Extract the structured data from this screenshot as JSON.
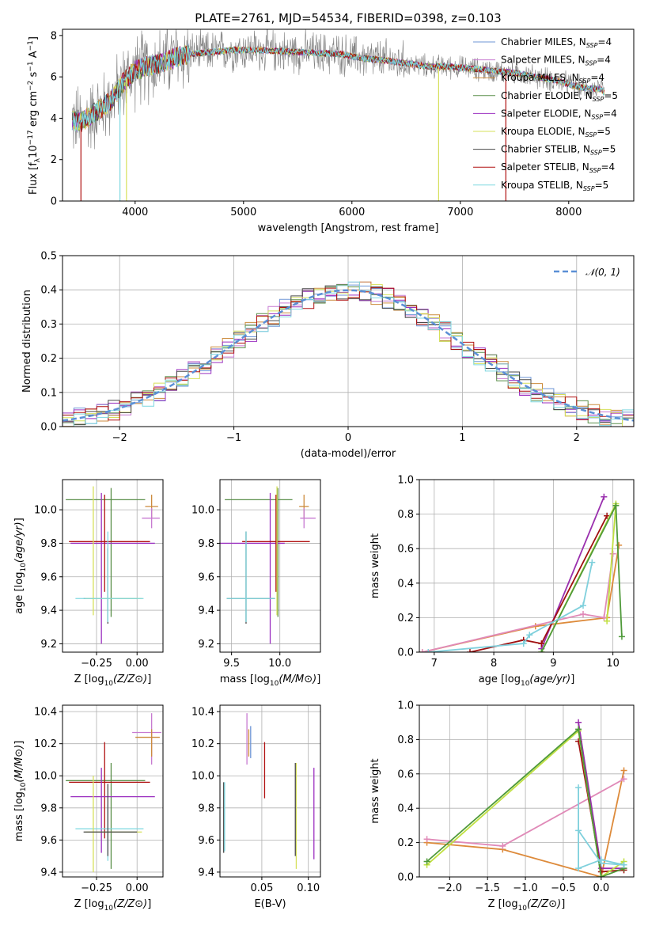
{
  "figure_title": "PLATE=2761, MJD=54534, FIBERID=0398, z=0.103",
  "colors": {
    "chabrier_miles": "#6e96d6",
    "salpeter_miles": "#c77ad1",
    "kroupa_miles": "#cc8b3d",
    "chabrier_elodie": "#5a8f4a",
    "salpeter_elodie": "#9b30c0",
    "kroupa_elodie": "#d6e05a",
    "chabrier_stelib": "#4a4a4a",
    "salpeter_stelib": "#b01010",
    "kroupa_stelib": "#7fd8e0",
    "data_gray": "#808080",
    "normal_curve": "#5b8fd6",
    "grid": "#b0b0b0",
    "mw_pink": "#e08ab8",
    "mw_orange": "#dd8a3a",
    "mw_purple": "#9a2fae",
    "mw_red": "#a01010",
    "mw_lime": "#c0e040",
    "mw_green": "#4f9a3a",
    "mw_cyan": "#7fd0dc"
  },
  "chart_data": [
    {
      "id": "spectrum",
      "type": "line",
      "title": "PLATE=2761, MJD=54534, FIBERID=0398, z=0.103",
      "xlabel": "wavelength [Angstrom, rest frame]",
      "ylabel_parts": [
        "Flux [f",
        "λ",
        "10",
        "−17",
        " erg cm",
        "−2",
        " s",
        "−1",
        " A",
        "−1",
        "]"
      ],
      "xlim": [
        3330,
        8600
      ],
      "ylim": [
        0,
        8.3
      ],
      "xticks": [
        "4000",
        "5000",
        "6000",
        "7000",
        "8000"
      ],
      "xtick_values": [
        4000,
        5000,
        6000,
        7000,
        8000
      ],
      "yticks": [
        "0",
        "2",
        "4",
        "6",
        "8"
      ],
      "ytick_values": [
        0,
        2,
        4,
        6,
        8
      ],
      "continuum": {
        "x": [
          3420,
          3500,
          3600,
          3700,
          3800,
          3900,
          4000,
          4100,
          4200,
          4300,
          4400,
          4500,
          4700,
          4900,
          5100,
          5300,
          5500,
          5700,
          5900,
          6100,
          6300,
          6500,
          6700,
          6900,
          7100,
          7300,
          7500,
          7700,
          7900,
          8100,
          8300,
          8330
        ],
        "y": [
          3.9,
          3.8,
          4.2,
          4.5,
          5.0,
          5.8,
          6.3,
          6.5,
          6.6,
          6.8,
          7.0,
          7.1,
          7.2,
          7.3,
          7.3,
          7.25,
          7.2,
          7.15,
          7.1,
          6.9,
          6.8,
          6.65,
          6.5,
          6.5,
          6.4,
          6.3,
          6.2,
          6.0,
          5.8,
          5.5,
          5.4,
          5.2
        ]
      },
      "legend": [
        {
          "name": "Chabrier MILES, N",
          "sub": "SSP",
          "tail": "=4",
          "color": "chabrier_miles"
        },
        {
          "name": "Salpeter MILES, N",
          "sub": "SSP",
          "tail": "=4",
          "color": "salpeter_miles"
        },
        {
          "name": "Kroupa MILES, N",
          "sub": "SSP",
          "tail": "=4",
          "color": "kroupa_miles"
        },
        {
          "name": "Chabrier ELODIE, N",
          "sub": "SSP",
          "tail": "=5",
          "color": "chabrier_elodie"
        },
        {
          "name": "Salpeter ELODIE, N",
          "sub": "SSP",
          "tail": "=4",
          "color": "salpeter_elodie"
        },
        {
          "name": "Kroupa ELODIE, N",
          "sub": "SSP",
          "tail": "=5",
          "color": "kroupa_elodie"
        },
        {
          "name": "Chabrier STELIB, N",
          "sub": "SSP",
          "tail": "=5",
          "color": "chabrier_stelib"
        },
        {
          "name": "Salpeter STELIB, N",
          "sub": "SSP",
          "tail": "=4",
          "color": "salpeter_stelib"
        },
        {
          "name": "Kroupa STELIB, N",
          "sub": "SSP",
          "tail": "=5",
          "color": "kroupa_stelib"
        }
      ]
    },
    {
      "id": "residuals",
      "type": "histogram",
      "xlabel": "(data-model)/error",
      "ylabel": "Normed distribution",
      "xlim": [
        -2.5,
        2.5
      ],
      "ylim": [
        0,
        0.5
      ],
      "xticks": [
        "−2",
        "−1",
        "0",
        "1",
        "2"
      ],
      "xtick_values": [
        -2,
        -1,
        0,
        1,
        2
      ],
      "yticks": [
        "0.0",
        "0.1",
        "0.2",
        "0.3",
        "0.4",
        "0.5"
      ],
      "ytick_values": [
        0,
        0.1,
        0.2,
        0.3,
        0.4,
        0.5
      ],
      "bin_width": 0.1,
      "legend": [
        {
          "name": "𝒩(0, 1)",
          "color": "normal_curve",
          "style": "dashed"
        }
      ]
    },
    {
      "id": "z_age",
      "type": "errorbar",
      "xlabel": "Z [log10(Z/Z⊙)]",
      "ylabel": "age [log10(age/yr)]",
      "xlim": [
        -0.46,
        0.16
      ],
      "ylim": [
        9.15,
        10.18
      ],
      "xticks": [
        "−0.25",
        "0.00"
      ],
      "xtick_values": [
        -0.25,
        0.0
      ],
      "yticks": [
        "9.2",
        "9.4",
        "9.6",
        "9.8",
        "10.0"
      ],
      "ytick_values": [
        9.2,
        9.4,
        9.6,
        9.8,
        10.0
      ],
      "points": [
        {
          "x": -0.16,
          "y": 10.06,
          "xerr": [
            0.28,
            0.21
          ],
          "yerr": [
            0.7,
            0.07
          ],
          "color": "chabrier_elodie"
        },
        {
          "x": 0.09,
          "y": 10.02,
          "xerr": [
            0.04,
            0.04
          ],
          "yerr": [
            0.07,
            0.07
          ],
          "color": "kroupa_miles"
        },
        {
          "x": 0.09,
          "y": 9.95,
          "xerr": [
            0.06,
            0.05
          ],
          "yerr": [
            0.06,
            0.06
          ],
          "color": "salpeter_miles"
        },
        {
          "x": -0.22,
          "y": 9.8,
          "xerr": [
            0.19,
            0.33
          ],
          "yerr": [
            0.6,
            0.3
          ],
          "color": "salpeter_elodie"
        },
        {
          "x": -0.2,
          "y": 9.81,
          "xerr": [
            0.22,
            0.28
          ],
          "yerr": [
            0.3,
            0.28
          ],
          "color": "salpeter_stelib"
        },
        {
          "x": -0.18,
          "y": 9.47,
          "xerr": [
            0.15,
            0.18
          ],
          "yerr": [
            0.15,
            0.3
          ],
          "color": "chabrier_stelib"
        },
        {
          "x": -0.27,
          "y": 9.47,
          "xerr": [
            0.05,
            0.3
          ],
          "yerr": [
            0.1,
            0.67
          ],
          "color": "kroupa_elodie"
        },
        {
          "x": -0.18,
          "y": 9.47,
          "xerr": [
            0.2,
            0.22
          ],
          "yerr": [
            0.14,
            0.4
          ],
          "color": "kroupa_stelib"
        }
      ]
    },
    {
      "id": "mass_age",
      "type": "errorbar",
      "xlabel": "mass [log10(M/M⊙)]",
      "ylabel": "",
      "xlim": [
        9.38,
        10.42
      ],
      "ylim": [
        9.15,
        10.18
      ],
      "xticks": [
        "9.5",
        "10.0"
      ],
      "xtick_values": [
        9.5,
        10.0
      ],
      "yticks": [
        "9.2",
        "9.4",
        "9.6",
        "9.8",
        "10.0"
      ],
      "ytick_values": [
        9.2,
        9.4,
        9.6,
        9.8,
        10.0
      ],
      "points": [
        {
          "x": 9.98,
          "y": 10.06,
          "xerr": [
            0.55,
            0.15
          ],
          "yerr": [
            0.7,
            0.07
          ],
          "color": "chabrier_elodie"
        },
        {
          "x": 10.25,
          "y": 10.02,
          "xerr": [
            0.05,
            0.05
          ],
          "yerr": [
            0.07,
            0.07
          ],
          "color": "kroupa_miles"
        },
        {
          "x": 10.25,
          "y": 9.95,
          "xerr": [
            0.04,
            0.12
          ],
          "yerr": [
            0.06,
            0.06
          ],
          "color": "salpeter_miles"
        },
        {
          "x": 9.9,
          "y": 9.8,
          "xerr": [
            0.55,
            0.15
          ],
          "yerr": [
            0.6,
            0.3
          ],
          "color": "salpeter_elodie"
        },
        {
          "x": 9.96,
          "y": 9.81,
          "xerr": [
            0.35,
            0.35
          ],
          "yerr": [
            0.3,
            0.28
          ],
          "color": "salpeter_stelib"
        },
        {
          "x": 9.65,
          "y": 9.47,
          "xerr": [
            0.2,
            0.3
          ],
          "yerr": [
            0.15,
            0.4
          ],
          "color": "chabrier_stelib"
        },
        {
          "x": 9.97,
          "y": 9.47,
          "xerr": [
            0.0,
            0.0
          ],
          "yerr": [
            0.1,
            0.67
          ],
          "color": "kroupa_elodie"
        },
        {
          "x": 9.65,
          "y": 9.47,
          "xerr": [
            0.2,
            0.3
          ],
          "yerr": [
            0.14,
            0.4
          ],
          "color": "kroupa_stelib"
        }
      ]
    },
    {
      "id": "age_weight",
      "type": "line",
      "xlabel": "age [log10(age/yr)]",
      "ylabel": "mass weight",
      "xlim": [
        6.75,
        10.35
      ],
      "ylim": [
        0,
        1.0
      ],
      "xticks": [
        "7",
        "8",
        "9",
        "10"
      ],
      "xtick_values": [
        7,
        8,
        9,
        10
      ],
      "yticks": [
        "0.0",
        "0.2",
        "0.4",
        "0.6",
        "0.8",
        "1.0"
      ],
      "ytick_values": [
        0,
        0.2,
        0.4,
        0.6,
        0.8,
        1.0
      ],
      "series": [
        {
          "color": "mw_orange",
          "x": [
            6.8,
            8.7,
            9.9,
            10.1
          ],
          "y": [
            0.0,
            0.15,
            0.2,
            0.62
          ]
        },
        {
          "color": "mw_pink",
          "x": [
            6.8,
            9.5,
            9.85,
            10.0
          ],
          "y": [
            0.0,
            0.22,
            0.2,
            0.57
          ]
        },
        {
          "color": "mw_purple",
          "x": [
            8.8,
            9.85
          ],
          "y": [
            0.02,
            0.9
          ]
        },
        {
          "color": "mw_red",
          "x": [
            7.6,
            8.5,
            8.8,
            9.9
          ],
          "y": [
            0.0,
            0.07,
            0.05,
            0.79
          ]
        },
        {
          "color": "mw_lime",
          "x": [
            8.8,
            10.05,
            9.9
          ],
          "y": [
            0.0,
            0.86,
            0.18
          ]
        },
        {
          "color": "mw_green",
          "x": [
            8.8,
            10.05,
            10.15
          ],
          "y": [
            0.0,
            0.85,
            0.09
          ]
        },
        {
          "color": "mw_cyan",
          "x": [
            6.9,
            8.5,
            8.6,
            9.5,
            9.65
          ],
          "y": [
            0.0,
            0.05,
            0.1,
            0.27,
            0.52
          ]
        }
      ]
    },
    {
      "id": "z_mass",
      "type": "errorbar",
      "xlabel": "Z [log10(Z/Z⊙)]",
      "ylabel": "mass [log10(M/M⊙)]",
      "xlim": [
        -0.46,
        0.16
      ],
      "ylim": [
        9.37,
        10.44
      ],
      "xticks": [
        "−0.25",
        "0.00"
      ],
      "xtick_values": [
        -0.25,
        0.0
      ],
      "yticks": [
        "9.4",
        "9.6",
        "9.8",
        "10.0",
        "10.2",
        "10.4"
      ],
      "ytick_values": [
        9.4,
        9.6,
        9.8,
        10.0,
        10.2,
        10.4
      ],
      "points": [
        {
          "x": 0.09,
          "y": 10.27,
          "xerr": [
            0.12,
            0.06
          ],
          "yerr": [
            0.2,
            0.12
          ],
          "color": "salpeter_miles"
        },
        {
          "x": 0.09,
          "y": 10.24,
          "xerr": [
            0.1,
            0.05
          ],
          "yerr": [
            0.12,
            0.05
          ],
          "color": "kroupa_miles"
        },
        {
          "x": -0.16,
          "y": 9.97,
          "xerr": [
            0.28,
            0.21
          ],
          "yerr": [
            0.55,
            0.11
          ],
          "color": "chabrier_elodie"
        },
        {
          "x": -0.2,
          "y": 9.96,
          "xerr": [
            0.22,
            0.28
          ],
          "yerr": [
            0.35,
            0.25
          ],
          "color": "salpeter_stelib"
        },
        {
          "x": -0.22,
          "y": 9.87,
          "xerr": [
            0.19,
            0.33
          ],
          "yerr": [
            0.35,
            0.18
          ],
          "color": "salpeter_elodie"
        },
        {
          "x": -0.18,
          "y": 9.67,
          "xerr": [
            0.2,
            0.22
          ],
          "yerr": [
            0.2,
            0.15
          ],
          "color": "kroupa_stelib"
        },
        {
          "x": -0.27,
          "y": 9.65,
          "xerr": [
            0.05,
            0.3
          ],
          "yerr": [
            0.25,
            0.35
          ],
          "color": "kroupa_elodie"
        },
        {
          "x": -0.18,
          "y": 9.65,
          "xerr": [
            0.15,
            0.18
          ],
          "yerr": [
            0.15,
            0.3
          ],
          "color": "chabrier_stelib"
        }
      ]
    },
    {
      "id": "ebv_mass",
      "type": "errorbar",
      "xlabel": "E(B-V)",
      "ylabel": "",
      "xlim": [
        0.005,
        0.113
      ],
      "ylim": [
        9.37,
        10.44
      ],
      "xticks": [
        "0.05",
        "0.10"
      ],
      "xtick_values": [
        0.05,
        0.1
      ],
      "yticks": [
        "9.4",
        "9.6",
        "9.8",
        "10.0",
        "10.2",
        "10.4"
      ],
      "ytick_values": [
        9.4,
        9.6,
        9.8,
        10.0,
        10.2,
        10.4
      ],
      "points": [
        {
          "x": 0.034,
          "y": 10.27,
          "yerr": [
            0.2,
            0.12
          ],
          "color": "salpeter_miles"
        },
        {
          "x": 0.036,
          "y": 10.24,
          "yerr": [
            0.12,
            0.05
          ],
          "color": "kroupa_miles"
        },
        {
          "x": 0.038,
          "y": 10.21,
          "yerr": [
            0.1,
            0.1
          ],
          "color": "chabrier_miles"
        },
        {
          "x": 0.053,
          "y": 9.96,
          "yerr": [
            0.1,
            0.25
          ],
          "color": "salpeter_stelib"
        },
        {
          "x": 0.087,
          "y": 9.97,
          "yerr": [
            0.55,
            0.11
          ],
          "color": "kroupa_elodie"
        },
        {
          "x": 0.086,
          "y": 10.0,
          "yerr": [
            0.5,
            0.08
          ],
          "color": "chabrier_stelib"
        },
        {
          "x": 0.106,
          "y": 9.8,
          "yerr": [
            0.32,
            0.25
          ],
          "color": "salpeter_elodie"
        },
        {
          "x": 0.009,
          "y": 9.75,
          "yerr": [
            0.23,
            0.21
          ],
          "color": "chabrier_stelib"
        },
        {
          "x": 0.01,
          "y": 9.73,
          "yerr": [
            0.2,
            0.23
          ],
          "color": "kroupa_stelib"
        }
      ]
    },
    {
      "id": "z_weight",
      "type": "line",
      "xlabel": "Z [log10(Z/Z⊙)]",
      "ylabel": "mass weight",
      "xlim": [
        -2.4,
        0.43
      ],
      "ylim": [
        0,
        1.0
      ],
      "xticks": [
        "−2.0",
        "−1.5",
        "−1.0",
        "−0.5",
        "0.0"
      ],
      "xtick_values": [
        -2.0,
        -1.5,
        -1.0,
        -0.5,
        0.0
      ],
      "yticks": [
        "0.0",
        "0.2",
        "0.4",
        "0.6",
        "0.8",
        "1.0"
      ],
      "ytick_values": [
        0,
        0.2,
        0.4,
        0.6,
        0.8,
        1.0
      ],
      "series": [
        {
          "color": "mw_orange",
          "x": [
            -2.3,
            -1.3,
            0.0,
            0.3
          ],
          "y": [
            0.2,
            0.16,
            0.0,
            0.62
          ]
        },
        {
          "color": "mw_pink",
          "x": [
            -2.3,
            -1.3,
            0.3
          ],
          "y": [
            0.22,
            0.18,
            0.57
          ]
        },
        {
          "color": "mw_purple",
          "x": [
            -0.3,
            0.0,
            0.3
          ],
          "y": [
            0.9,
            0.05,
            0.05
          ]
        },
        {
          "color": "mw_red",
          "x": [
            -0.3,
            0.0,
            0.3
          ],
          "y": [
            0.79,
            0.03,
            0.04
          ]
        },
        {
          "color": "mw_lime",
          "x": [
            -2.3,
            -0.3,
            0.0,
            0.3
          ],
          "y": [
            0.07,
            0.85,
            0.0,
            0.09
          ]
        },
        {
          "color": "mw_green",
          "x": [
            -2.3,
            -0.3,
            0.0,
            0.3
          ],
          "y": [
            0.09,
            0.86,
            0.0,
            0.05
          ]
        },
        {
          "color": "mw_cyan",
          "x": [
            -0.3,
            -0.3,
            0.0,
            0.0,
            0.3
          ],
          "y": [
            0.52,
            0.05,
            0.1,
            0.1,
            0.07
          ]
        },
        {
          "color": "mw_cyan",
          "x": [
            -0.3,
            0.0,
            0.3
          ],
          "y": [
            0.27,
            0.08,
            0.07
          ]
        }
      ]
    }
  ]
}
